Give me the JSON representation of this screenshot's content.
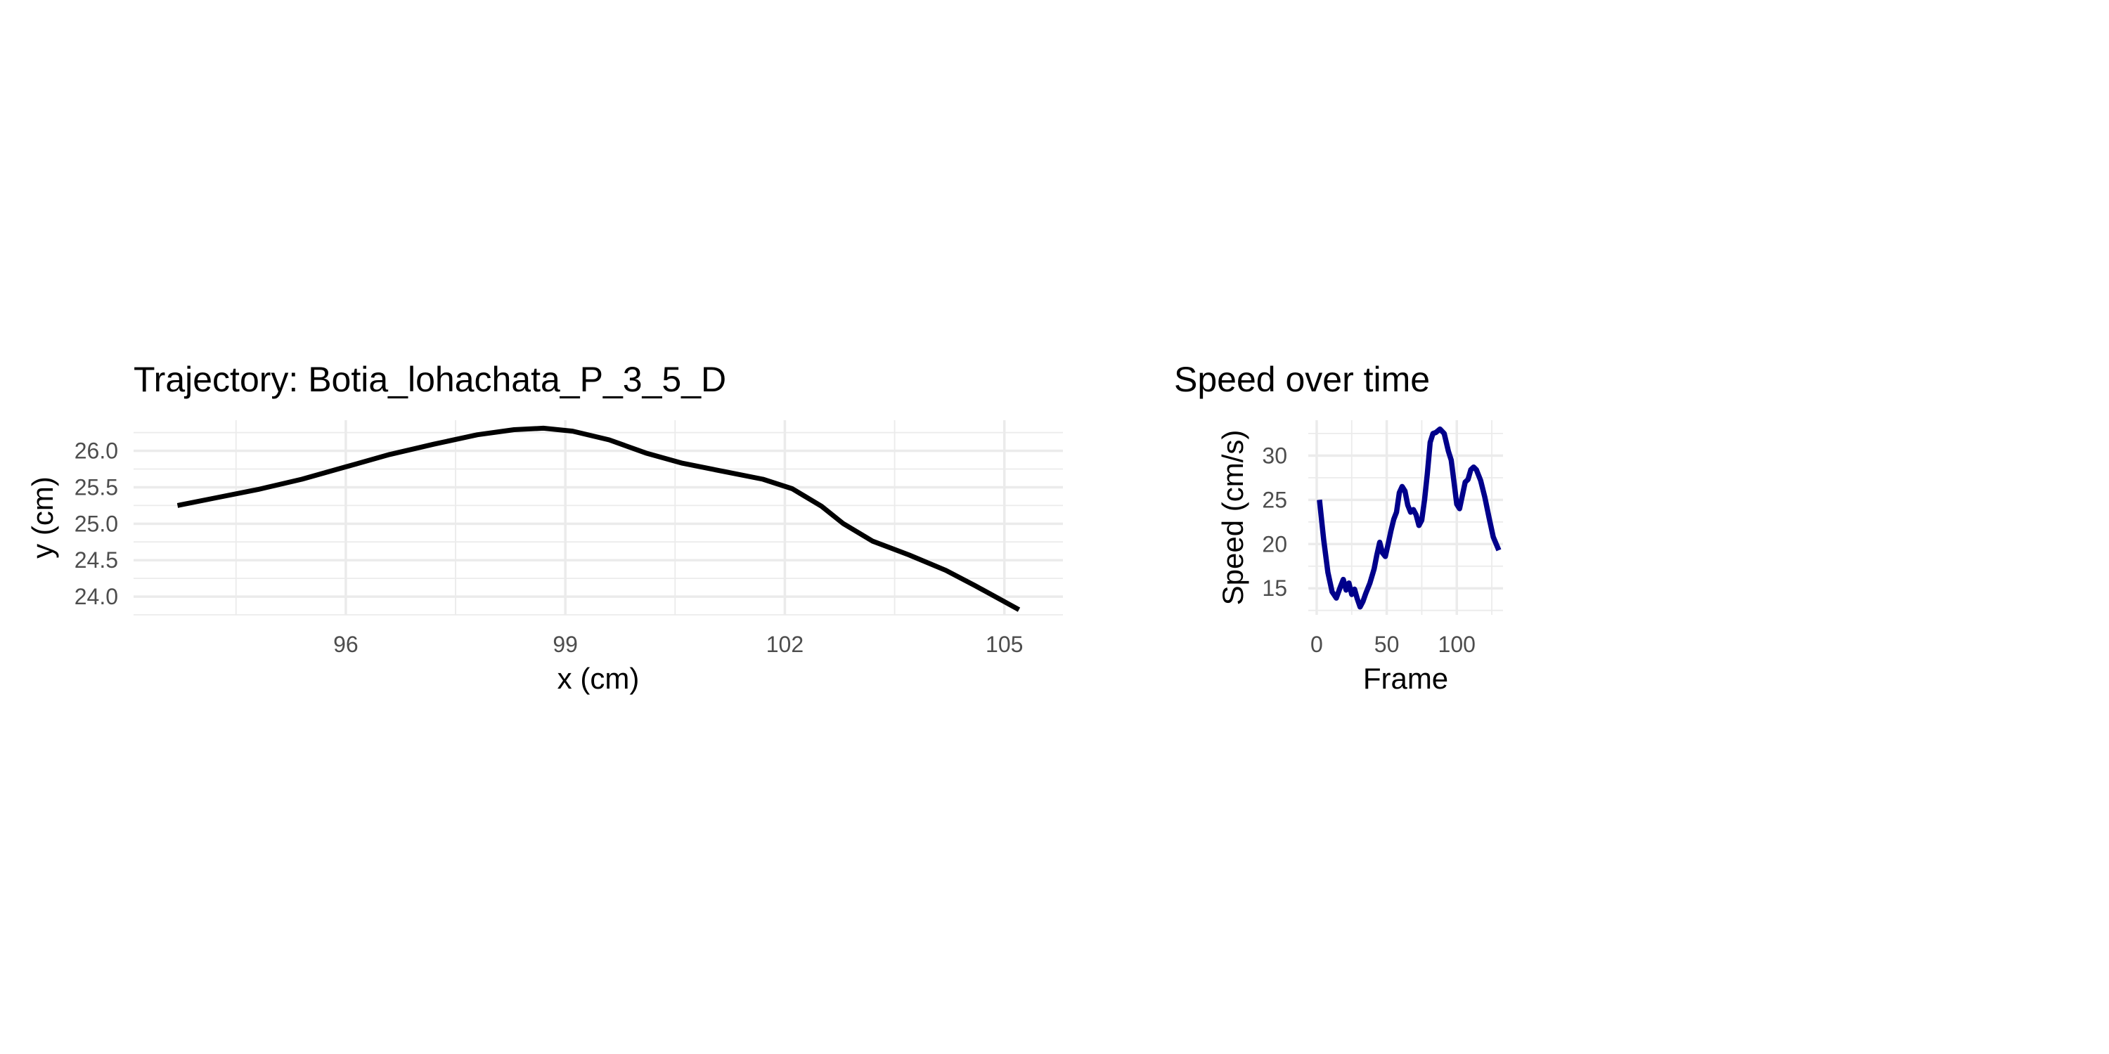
{
  "chart_data": [
    {
      "type": "line",
      "title": "Trajectory: Botia_lohachata_P_3_5_D",
      "xlabel": "x (cm)",
      "ylabel": "y (cm)",
      "xlim": [
        93.1,
        105.8
      ],
      "ylim": [
        23.75,
        26.42
      ],
      "x_ticks": [
        96,
        99,
        102,
        105
      ],
      "x_tick_labels": [
        "96",
        "99",
        "102",
        "105"
      ],
      "y_ticks": [
        24.0,
        24.5,
        25.0,
        25.5,
        26.0
      ],
      "y_tick_labels": [
        "24.0",
        "24.5",
        "25.0",
        "25.5",
        "26.0"
      ],
      "grid": true,
      "line_color": "#000000",
      "series": [
        {
          "x": [
            93.7,
            94.2,
            94.8,
            95.4,
            96.0,
            96.6,
            97.2,
            97.8,
            98.3,
            98.7,
            99.1,
            99.6,
            100.1,
            100.6,
            101.2,
            101.7,
            102.1,
            102.5,
            102.8,
            103.2,
            103.7,
            104.2,
            104.6,
            105.2
          ],
          "y": [
            25.25,
            25.35,
            25.47,
            25.61,
            25.78,
            25.95,
            26.09,
            26.22,
            26.29,
            26.31,
            26.27,
            26.15,
            25.97,
            25.83,
            25.71,
            25.61,
            25.48,
            25.24,
            25.0,
            24.76,
            24.57,
            24.36,
            24.15,
            23.82
          ]
        }
      ]
    },
    {
      "type": "line",
      "title": "Speed over time",
      "xlabel": "Frame",
      "ylabel": "Speed (cm/s)",
      "xlim": [
        -6,
        133
      ],
      "ylim": [
        12.0,
        34.0
      ],
      "x_ticks": [
        0,
        50,
        100
      ],
      "x_tick_labels": [
        "0",
        "50",
        "100"
      ],
      "y_ticks": [
        15,
        20,
        25,
        30
      ],
      "y_tick_labels": [
        "15",
        "20",
        "25",
        "30"
      ],
      "grid": true,
      "line_color": "#00008b",
      "series": [
        {
          "x": [
            2,
            5,
            8,
            11,
            14,
            17,
            19,
            21,
            23,
            25,
            27,
            29,
            31,
            33,
            35,
            38,
            41,
            43,
            45,
            47,
            49,
            51,
            53,
            55,
            57,
            59,
            61,
            63,
            65,
            67,
            69,
            71,
            73,
            75,
            77,
            79,
            81,
            83,
            85,
            88,
            91,
            94,
            96,
            98,
            100,
            102,
            104,
            106,
            108,
            110,
            112,
            114,
            117,
            120,
            123,
            126,
            130
          ],
          "y": [
            25.0,
            20.5,
            16.8,
            14.6,
            13.9,
            15.2,
            16.0,
            14.8,
            15.6,
            14.3,
            14.9,
            13.8,
            12.9,
            13.5,
            14.4,
            15.6,
            17.2,
            18.8,
            20.2,
            19.0,
            18.6,
            20.0,
            21.5,
            22.8,
            23.6,
            25.8,
            26.5,
            26.0,
            24.4,
            23.6,
            23.9,
            23.3,
            22.1,
            22.7,
            25.0,
            28.0,
            31.5,
            32.5,
            32.6,
            33.0,
            32.5,
            30.5,
            29.5,
            27.0,
            24.5,
            24.0,
            25.5,
            27.0,
            27.3,
            28.4,
            28.7,
            28.4,
            27.2,
            25.3,
            23.0,
            20.8,
            19.3
          ]
        }
      ]
    }
  ]
}
